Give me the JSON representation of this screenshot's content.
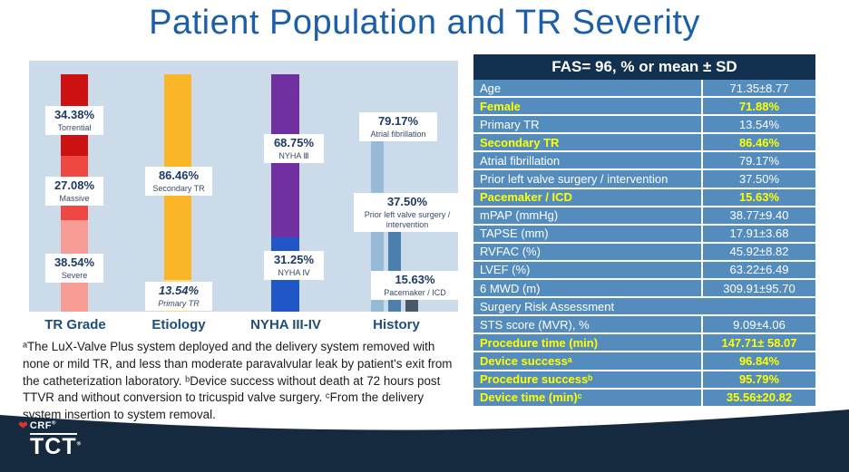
{
  "slide": {
    "title": "Patient Population and TR Severity",
    "footnote": "ᵃThe LuX-Valve Plus system deployed and the delivery system removed with none or mild TR, and less than moderate paravalvular leak by patient's exit from the catheterization laboratory. ᵇDevice success without death at 72 hours post TTVR and without conversion to tricuspid valve surgery. ᶜFrom the delivery system insertion to system removal."
  },
  "colors": {
    "title_blue": "#1a5fa8",
    "chart_panel_bg": "#cbdbe9",
    "table_row_blue": "#548dbd",
    "table_header_navy": "#12304f",
    "highlight_yellow": "#ffff00",
    "wave_navy": "#152a3e",
    "label_navy": "#1f3a63"
  },
  "chart_data": {
    "type": "bar",
    "stacked": true,
    "unit": "%",
    "ylim": [
      0,
      100
    ],
    "grid": false,
    "legend": false,
    "groups": [
      {
        "category": "TR Grade",
        "segments": [
          {
            "name": "Torrential",
            "value": 34.38,
            "pct_label": "34.38%",
            "color": "#cb1111"
          },
          {
            "name": "Massive",
            "value": 27.08,
            "pct_label": "27.08%",
            "color": "#ef4742"
          },
          {
            "name": "Severe",
            "value": 38.54,
            "pct_label": "38.54%",
            "color": "#f89d96"
          }
        ]
      },
      {
        "category": "Etiology",
        "segments": [
          {
            "name": "Secondary TR",
            "value": 86.46,
            "pct_label": "86.46%",
            "color": "#fbb628"
          },
          {
            "name": "Primary TR",
            "value": 13.54,
            "pct_label": "13.54%",
            "color": "#fdd883"
          }
        ]
      },
      {
        "category": "NYHA III-IV",
        "segments": [
          {
            "name": "NYHA Ⅲ",
            "value": 68.75,
            "pct_label": "68.75%",
            "color": "#7030a0"
          },
          {
            "name": "NYHA Ⅳ",
            "value": 31.25,
            "pct_label": "31.25%",
            "color": "#2156c6"
          }
        ]
      },
      {
        "category": "History",
        "layout": "grouped",
        "segments": [
          {
            "name": "Atrial fibrillation",
            "value": 79.17,
            "pct_label": "79.17%",
            "color": "#96bbd8"
          },
          {
            "name": "Prior left valve surgery / intervention",
            "value": 37.5,
            "pct_label": "37.50%",
            "color": "#4d7fae"
          },
          {
            "name": "Pacemaker / ICD",
            "value": 15.63,
            "pct_label": "15.63%",
            "color": "#485a69"
          }
        ]
      }
    ]
  },
  "table": {
    "header": "FAS= 96, % or mean ± SD",
    "rows": [
      {
        "label": "Age",
        "value": "71.35±8.77",
        "highlight": false
      },
      {
        "label": "Female",
        "value": "71.88%",
        "highlight": true
      },
      {
        "label": "Primary TR",
        "value": "13.54%",
        "highlight": false
      },
      {
        "label": "Secondary TR",
        "value": "86.46%",
        "highlight": true
      },
      {
        "label": "Atrial fibrillation",
        "value": "79.17%",
        "highlight": false
      },
      {
        "label": "Prior left valve surgery / intervention",
        "value": "37.50%",
        "highlight": false
      },
      {
        "label": "Pacemaker / ICD",
        "value": "15.63%",
        "highlight": true
      },
      {
        "label": "mPAP (mmHg)",
        "value": "38.77±9.40",
        "highlight": false
      },
      {
        "label": "TAPSE (mm)",
        "value": "17.91±3.68",
        "highlight": false
      },
      {
        "label": "RVFAC (%)",
        "value": "45.92±8.82",
        "highlight": false
      },
      {
        "label": "LVEF (%)",
        "value": "63.22±6.49",
        "highlight": false
      },
      {
        "label": "6 MWD (m)",
        "value": "309.91±95.70",
        "highlight": false
      },
      {
        "label": "Surgery Risk Assessment",
        "value": "",
        "highlight": false
      },
      {
        "label": "STS score (MVR), %",
        "value": "9.09±4.06",
        "highlight": false
      },
      {
        "label": "Procedure time (min)",
        "value": "147.71± 58.07",
        "highlight": true
      },
      {
        "label": "Device successᵃ",
        "value": "96.84%",
        "highlight": true
      },
      {
        "label": "Procedure successᵇ",
        "value": "95.79%",
        "highlight": true
      },
      {
        "label": "Device time (min)ᶜ",
        "value": "35.56±20.82",
        "highlight": true
      }
    ]
  },
  "footer": {
    "crf": "CRF",
    "crf_reg": "®",
    "tct": "TCT",
    "tct_reg": "®"
  }
}
